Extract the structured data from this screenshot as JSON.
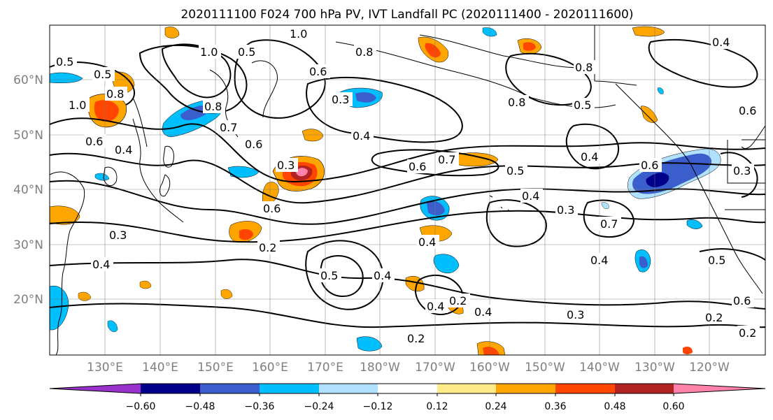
{
  "title": "2020111100 F024 700 hPa PV, IVT Landfall PC (2020111400 - 2020111600)",
  "lat_labels": [
    "60°N",
    "50°N",
    "40°N",
    "30°N",
    "20°N"
  ],
  "lon_labels": [
    "130°E",
    "140°E",
    "150°E",
    "160°E",
    "170°E",
    "180°W",
    "170°W",
    "160°W",
    "150°W",
    "140°W",
    "130°W",
    "120°W"
  ],
  "contour_labels": [
    "0.5",
    "1.0",
    "0.5",
    "0.8",
    "1.0",
    "0.8",
    "0.6",
    "0.6",
    "0.4",
    "0.5",
    "1.0",
    "0.8",
    "0.6",
    "0.7",
    "0.6",
    "0.3",
    "0.4",
    "0.3",
    "0.6",
    "0.7",
    "0.5",
    "0.4",
    "0.3",
    "0.8",
    "0.5",
    "0.4",
    "0.6",
    "0.3",
    "0.7",
    "0.4",
    "0.2",
    "0.4",
    "0.5",
    "0.4",
    "0.4",
    "0.2",
    "0.4",
    "0.3",
    "0.2",
    "0.2",
    "0.2",
    "0.6",
    "0.5",
    "0.6",
    "0.4",
    "0.8",
    "0.4",
    "0.3"
  ],
  "colorbar": {
    "colors": [
      "#9932cc",
      "#00008b",
      "#3a5fcd",
      "#00bfff",
      "#b0e2ff",
      "#ffffff",
      "#ffeb8a",
      "#ffa500",
      "#ff4500",
      "#b22222",
      "#ff82ab"
    ],
    "tick_labels": [
      "−0.60",
      "−0.48",
      "−0.36",
      "−0.24",
      "−0.12",
      "0.12",
      "0.24",
      "0.36",
      "0.48",
      "0.60"
    ]
  }
}
